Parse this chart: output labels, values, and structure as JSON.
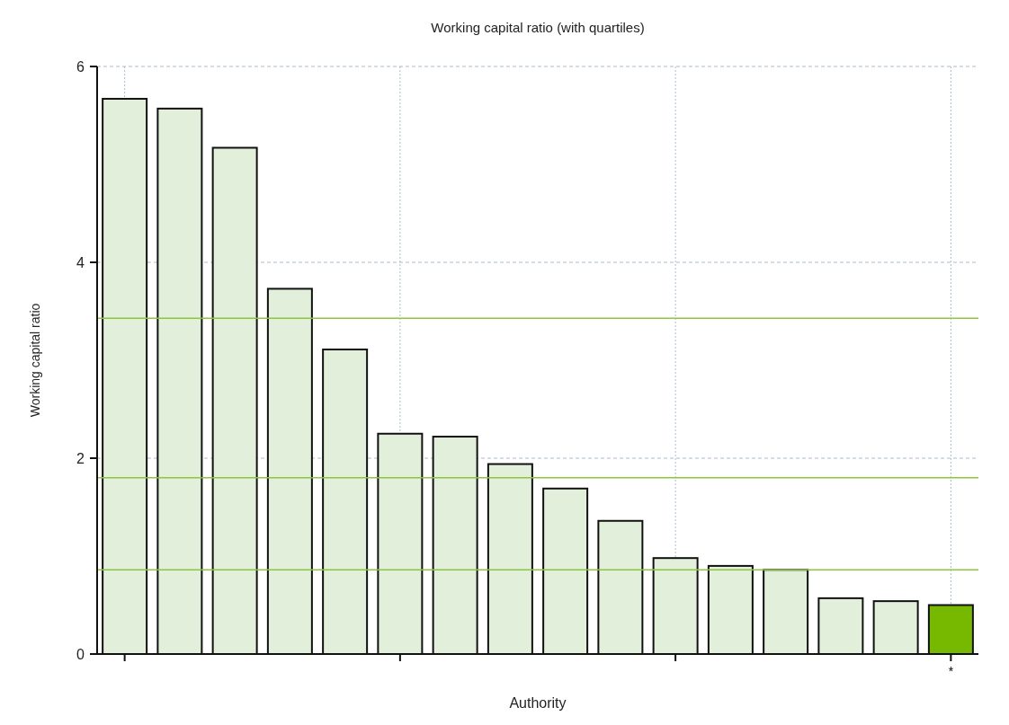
{
  "chart_data": {
    "type": "bar",
    "title": "Working capital ratio (with quartiles)",
    "xlabel": "Authority",
    "ylabel": "Working capital ratio",
    "categories": [
      null,
      null,
      null,
      null,
      null,
      null,
      null,
      null,
      null,
      null,
      null,
      null,
      null,
      null,
      null,
      "*"
    ],
    "values": [
      5.67,
      5.57,
      5.17,
      3.73,
      3.11,
      2.25,
      2.22,
      1.94,
      1.69,
      1.36,
      0.98,
      0.9,
      0.86,
      0.57,
      0.54,
      0.5
    ],
    "colors": [
      "#e2efda",
      "#e2efda",
      "#e2efda",
      "#e2efda",
      "#e2efda",
      "#e2efda",
      "#e2efda",
      "#e2efda",
      "#e2efda",
      "#e2efda",
      "#e2efda",
      "#e2efda",
      "#e2efda",
      "#e2efda",
      "#e2efda",
      "#76b900"
    ],
    "ylim": [
      0,
      6
    ],
    "yticks": [
      0,
      2,
      4,
      6
    ],
    "grid": true,
    "ref_lines": [
      {
        "axis": "y",
        "value": 3.43,
        "color": "#8cc63f"
      },
      {
        "axis": "y",
        "value": 1.8,
        "color": "#8cc63f"
      },
      {
        "axis": "y",
        "value": 0.86,
        "color": "#8cc63f"
      }
    ]
  }
}
